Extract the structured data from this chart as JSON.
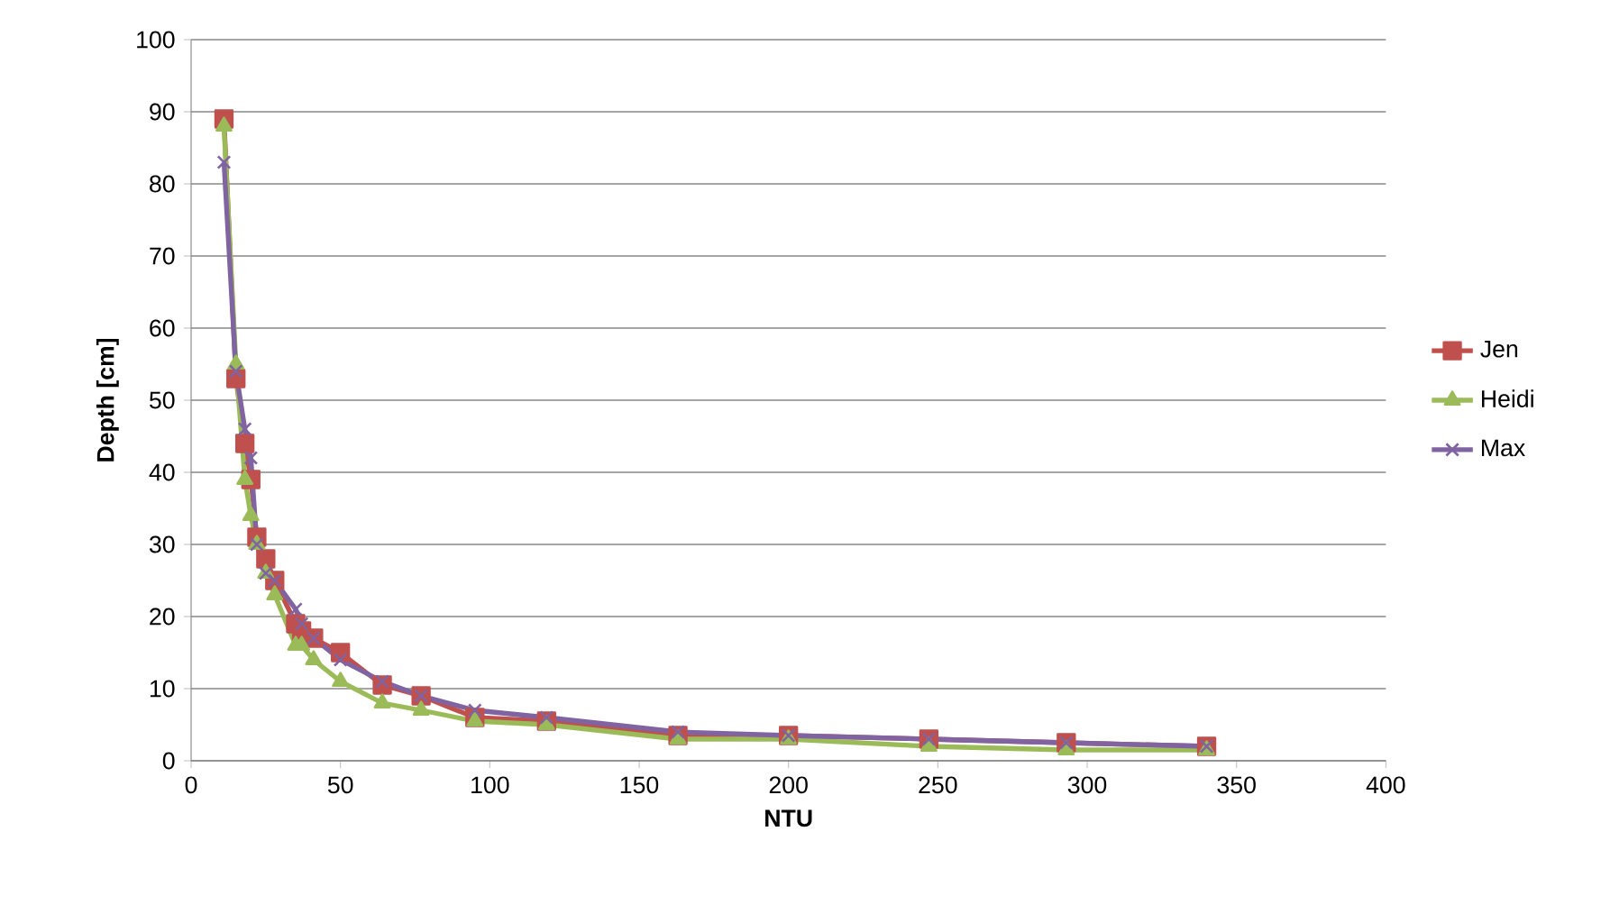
{
  "chart_data": {
    "type": "line",
    "xlabel": "NTU",
    "ylabel": "Depth [cm]",
    "x": [
      11,
      15,
      18,
      20,
      22,
      25,
      28,
      35,
      37,
      41,
      50,
      64,
      77,
      95,
      119,
      163,
      200,
      247,
      293,
      340
    ],
    "series": [
      {
        "name": "Jen",
        "color": "#c0504d",
        "marker": "square",
        "values": [
          89,
          53,
          44,
          39,
          31,
          28,
          25,
          19,
          18,
          17,
          15,
          10.5,
          9,
          6,
          5.5,
          3.5,
          3.5,
          3,
          2.5,
          2
        ]
      },
      {
        "name": "Heidi",
        "color": "#9bbb59",
        "marker": "triangle",
        "values": [
          88,
          55,
          39,
          34,
          30,
          26,
          23,
          16,
          16,
          14,
          11,
          8,
          7,
          5.5,
          5,
          3,
          3,
          2,
          1.5,
          1.5
        ]
      },
      {
        "name": "Max",
        "color": "#8064a2",
        "marker": "cross",
        "values": [
          83,
          54,
          46,
          42,
          30,
          26,
          25,
          21,
          19,
          17,
          14,
          11,
          9,
          7,
          6,
          4,
          3.5,
          3,
          2.5,
          2
        ]
      }
    ],
    "xlim": [
      0,
      400
    ],
    "xticks": [
      0,
      50,
      100,
      150,
      200,
      250,
      300,
      350,
      400
    ],
    "ylim": [
      0,
      100
    ],
    "yticks": [
      0,
      10,
      20,
      30,
      40,
      50,
      60,
      70,
      80,
      90,
      100
    ],
    "grid": "y",
    "legend": "right",
    "line_style": "solid"
  }
}
